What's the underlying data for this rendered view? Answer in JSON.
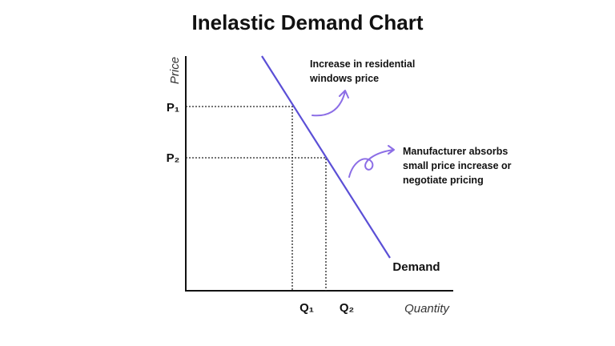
{
  "title": "Inelastic Demand Chart",
  "axes": {
    "y_label": "Price",
    "x_label": "Quantity"
  },
  "price_levels": [
    "P₁",
    "P₂"
  ],
  "quantity_levels": [
    "Q₁",
    "Q₂"
  ],
  "curve_label": "Demand",
  "annotations": [
    {
      "lines": [
        "Increase in residential",
        "windows price"
      ]
    },
    {
      "lines": [
        "Manufacturer absorbs",
        "small price increase or",
        "negotiate pricing"
      ]
    }
  ]
}
